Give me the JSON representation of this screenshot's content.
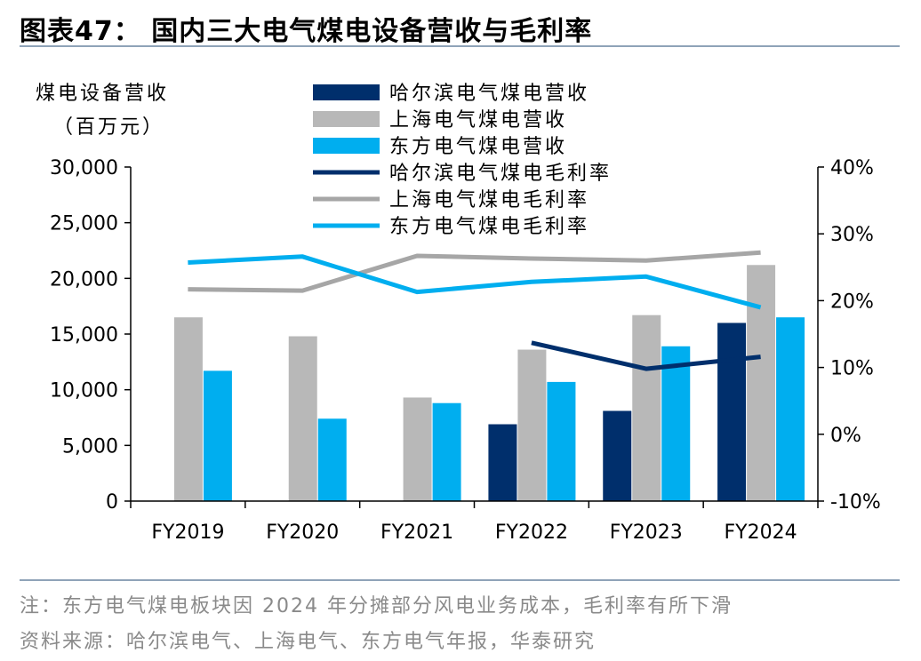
{
  "title": "图表47：  国内三大电气煤电设备营收与毛利率",
  "note": "注：东方电气煤电板块因 2024 年分摊部分风电业务成本，毛利率有所下滑",
  "source": "资料来源：哈尔滨电气、上海电气、东方电气年报，华泰研究",
  "colors": {
    "harbin": "#002f6c",
    "shanghai": "#b8b8b8",
    "dongfang": "#00aeef",
    "rule": "#8fa3b8"
  },
  "chart_data": {
    "type": "bar",
    "ylabel_line1": "煤电设备营收",
    "ylabel_line2": "（百万元）",
    "categories": [
      "FY2019",
      "FY2020",
      "FY2021",
      "FY2022",
      "FY2023",
      "FY2024"
    ],
    "ylim": [
      0,
      30000
    ],
    "yticks": [
      "0",
      "5,000",
      "10,000",
      "15,000",
      "20,000",
      "25,000",
      "30,000"
    ],
    "y2lim": [
      -0.1,
      0.4
    ],
    "y2ticks": [
      "-10%",
      "0%",
      "10%",
      "20%",
      "30%",
      "40%"
    ],
    "legend_position": "top",
    "grid": false,
    "series": [
      {
        "name": "哈尔滨电气煤电营收",
        "kind": "bar",
        "color": "#002f6c",
        "values": [
          null,
          null,
          null,
          6900,
          8100,
          16000
        ]
      },
      {
        "name": "上海电气煤电营收",
        "kind": "bar",
        "color": "#b8b8b8",
        "values": [
          16500,
          14800,
          9300,
          13600,
          16700,
          21200
        ]
      },
      {
        "name": "东方电气煤电营收",
        "kind": "bar",
        "color": "#00aeef",
        "values": [
          11700,
          7400,
          8800,
          10700,
          13900,
          16500
        ]
      },
      {
        "name": "哈尔滨电气煤电毛利率",
        "kind": "line",
        "color": "#002f6c",
        "values": [
          null,
          null,
          null,
          0.137,
          0.098,
          0.116
        ]
      },
      {
        "name": "上海电气煤电毛利率",
        "kind": "line",
        "color": "#a6a6a6",
        "values": [
          0.217,
          0.215,
          0.267,
          0.263,
          0.26,
          0.272
        ]
      },
      {
        "name": "东方电气煤电毛利率",
        "kind": "line",
        "color": "#00aeef",
        "values": [
          0.257,
          0.266,
          0.213,
          0.228,
          0.236,
          0.19
        ]
      }
    ]
  }
}
